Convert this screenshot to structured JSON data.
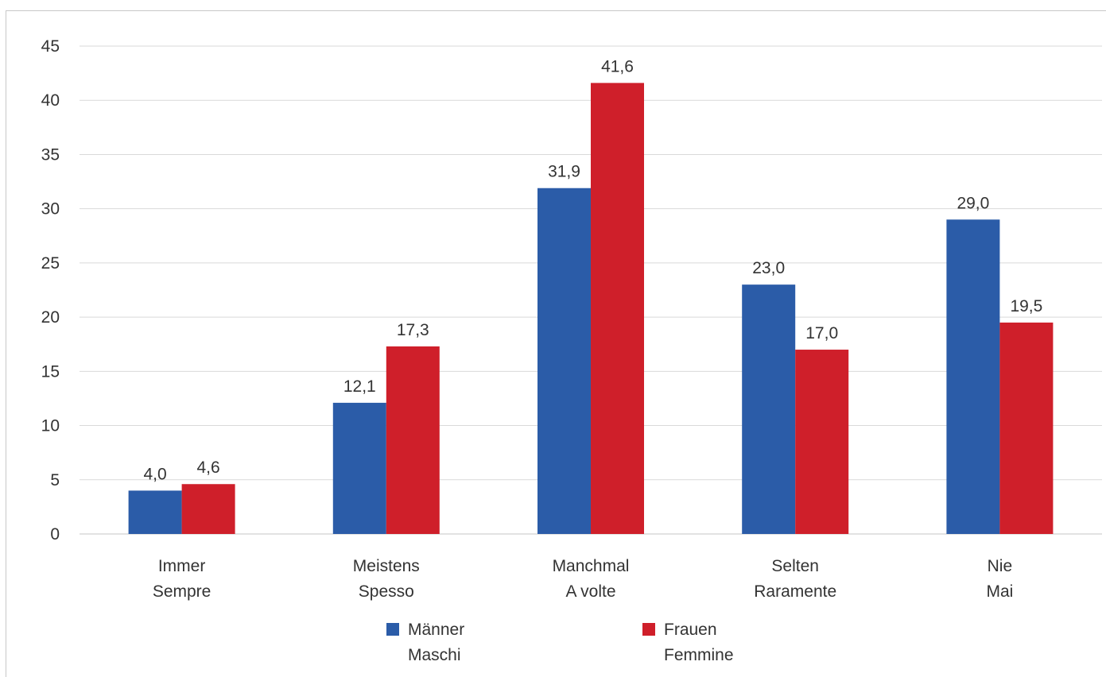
{
  "chart_data": {
    "type": "bar",
    "categories": [
      [
        "Immer",
        "Sempre"
      ],
      [
        "Meistens",
        "Spesso"
      ],
      [
        "Manchmal",
        "A volte"
      ],
      [
        "Selten",
        "Raramente"
      ],
      [
        "Nie",
        "Mai"
      ]
    ],
    "series": [
      {
        "name": [
          "Männer",
          "Maschi"
        ],
        "color": "#2b5ca8",
        "values": [
          4.0,
          12.1,
          31.9,
          23.0,
          29.0
        ],
        "labels": [
          "4,0",
          "12,1",
          "31,9",
          "23,0",
          "29,0"
        ]
      },
      {
        "name": [
          "Frauen",
          "Femmine"
        ],
        "color": "#cf1f2a",
        "values": [
          4.6,
          17.3,
          41.6,
          17.0,
          19.5
        ],
        "labels": [
          "4,6",
          "17,3",
          "41,6",
          "17,0",
          "19,5"
        ]
      }
    ],
    "ylim": [
      0,
      45
    ],
    "yticks": [
      0,
      5,
      10,
      15,
      20,
      25,
      30,
      35,
      40,
      45
    ],
    "grid": true,
    "legend_position": "bottom",
    "gridline_color": "#d9d9d9"
  }
}
